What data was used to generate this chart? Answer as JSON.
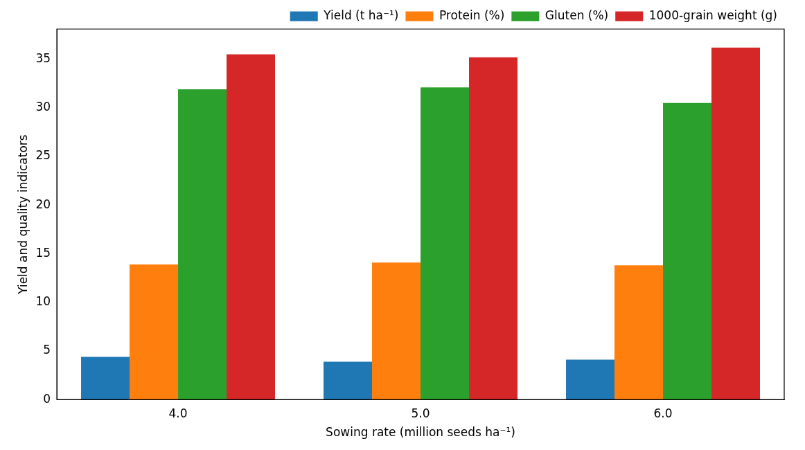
{
  "chart_data": {
    "type": "bar",
    "xlabel": "Sowing rate (million seeds ha⁻¹)",
    "ylabel": "Yield and quality indicators",
    "categories": [
      "4.0",
      "5.0",
      "6.0"
    ],
    "series": [
      {
        "name": "Yield (t ha⁻¹)",
        "color": "#1f77b4",
        "values": [
          4.4,
          3.9,
          4.1
        ]
      },
      {
        "name": "Protein (%)",
        "color": "#ff7f0e",
        "values": [
          13.9,
          14.1,
          13.8
        ]
      },
      {
        "name": "Gluten (%)",
        "color": "#2ca02c",
        "values": [
          31.9,
          32.1,
          30.5
        ]
      },
      {
        "name": "1000-grain weight (g)",
        "color": "#d62728",
        "values": [
          35.5,
          35.2,
          36.2
        ]
      }
    ],
    "ylim": [
      0,
      38.1
    ],
    "yticks": [
      0,
      5,
      10,
      15,
      20,
      25,
      30,
      35
    ],
    "grid": false,
    "legend": "top right"
  }
}
